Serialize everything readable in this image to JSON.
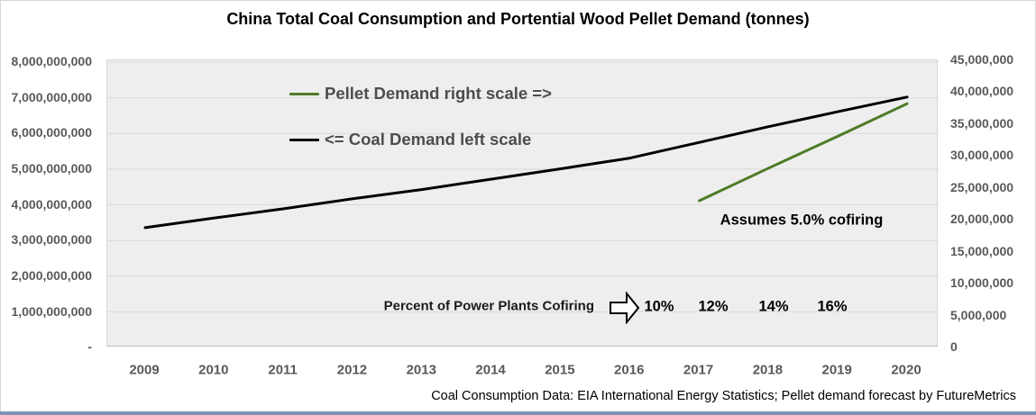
{
  "chart_data": {
    "type": "line",
    "title": "China Total Coal Consumption and Portential Wood Pellet Demand (tonnes)",
    "x": [
      2009,
      2010,
      2011,
      2012,
      2013,
      2014,
      2015,
      2016,
      2017,
      2018,
      2019,
      2020
    ],
    "x_tick_labels": [
      "2009",
      "2010",
      "2011",
      "2012",
      "2013",
      "2014",
      "2015",
      "2016",
      "2017",
      "2018",
      "2019",
      "2020"
    ],
    "series": [
      {
        "name": "Coal Demand",
        "axis": "left",
        "color": "#000000",
        "x": [
          2009,
          2010,
          2011,
          2012,
          2013,
          2014,
          2015,
          2016,
          2017,
          2018,
          2019,
          2020
        ],
        "values": [
          3360000000,
          3630000000,
          3890000000,
          4170000000,
          4430000000,
          4720000000,
          5010000000,
          5310000000,
          5750000000,
          6190000000,
          6610000000,
          7020000000
        ]
      },
      {
        "name": "Pellet Demand",
        "axis": "right",
        "color": "#4e7b27",
        "x": [
          2017,
          2018,
          2019,
          2020
        ],
        "values": [
          23000000,
          28100000,
          33100000,
          38200000
        ]
      }
    ],
    "left_axis": {
      "min": 0,
      "max": 8000000000,
      "tick_step": 1000000000,
      "tick_labels_top_down": [
        "8,000,000,000",
        "7,000,000,000",
        "6,000,000,000",
        "5,000,000,000",
        "4,000,000,000",
        "3,000,000,000",
        "2,000,000,000",
        "1,000,000,000",
        "-"
      ]
    },
    "right_axis": {
      "min": 0,
      "max": 45000000,
      "tick_step": 5000000,
      "tick_labels_top_down": [
        "45,000,000",
        "40,000,000",
        "35,000,000",
        "30,000,000",
        "25,000,000",
        "20,000,000",
        "15,000,000",
        "10,000,000",
        "5,000,000",
        "0"
      ]
    },
    "grid": "horizontal",
    "legend_position": "floating-inside-plot-top-left",
    "colors": {
      "plot_background": "#eeeeee",
      "gridline": "#d9d9d9",
      "axis_text": "#595959",
      "coal_line": "#000000",
      "pellet_line": "#4e7b27"
    }
  },
  "legend": {
    "pellet_label": "Pellet Demand right scale =>",
    "coal_label": "<= Coal Demand left scale"
  },
  "annotations": {
    "cofiring": "Assumes 5.0% cofiring",
    "percent_label": "Percent of Power Plants Cofiring",
    "arrow_icon": "block-right-arrow",
    "percents": [
      "10%",
      "12%",
      "14%",
      "16%"
    ]
  },
  "footer": "Coal Consumption Data: EIA International Energy Statistics; Pellet demand forecast by FutureMetrics"
}
